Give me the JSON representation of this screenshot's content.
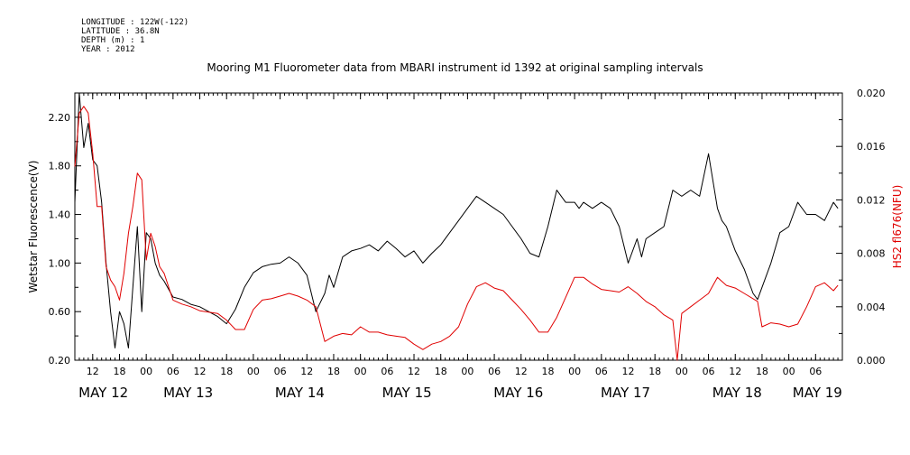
{
  "meta": {
    "longitude": "LONGITUDE : 122W(-122)",
    "latitude": "LATITUDE : 36.8N",
    "depth": "DEPTH (m) : 1",
    "year": "YEAR : 2012"
  },
  "colors": {
    "left_series": "#000000",
    "right_series": "#e00000",
    "right_axis_label": "#e00000"
  },
  "chart_data": {
    "type": "line",
    "title": "Mooring M1 Fluorometer data from MBARI instrument id 1392 at original sampling intervals",
    "ylabel_left": "Wetstar Fluorescence(V)",
    "ylabel_right": "HS2 fl676(NFU)",
    "ylim_left": [
      0.2,
      2.4
    ],
    "ylim_right": [
      0.0,
      0.02
    ],
    "yticks_left": [
      "0.20",
      "0.60",
      "1.00",
      "1.40",
      "1.80",
      "2.20"
    ],
    "yticks_right": [
      "0.000",
      "0.004",
      "0.008",
      "0.012",
      "0.016",
      "0.020"
    ],
    "xlim_hours": [
      0,
      172
    ],
    "hour_ticks": [
      {
        "h": 4,
        "label": "12"
      },
      {
        "h": 10,
        "label": "18"
      },
      {
        "h": 16,
        "label": "00"
      },
      {
        "h": 22,
        "label": "06"
      },
      {
        "h": 28,
        "label": "12"
      },
      {
        "h": 34,
        "label": "18"
      },
      {
        "h": 40,
        "label": "00"
      },
      {
        "h": 46,
        "label": "06"
      },
      {
        "h": 52,
        "label": "12"
      },
      {
        "h": 58,
        "label": "18"
      },
      {
        "h": 64,
        "label": "00"
      },
      {
        "h": 70,
        "label": "06"
      },
      {
        "h": 76,
        "label": "12"
      },
      {
        "h": 82,
        "label": "18"
      },
      {
        "h": 88,
        "label": "00"
      },
      {
        "h": 94,
        "label": "06"
      },
      {
        "h": 100,
        "label": "12"
      },
      {
        "h": 106,
        "label": "18"
      },
      {
        "h": 112,
        "label": "00"
      },
      {
        "h": 118,
        "label": "06"
      },
      {
        "h": 124,
        "label": "12"
      },
      {
        "h": 130,
        "label": "18"
      },
      {
        "h": 136,
        "label": "00"
      },
      {
        "h": 142,
        "label": "06"
      },
      {
        "h": 148,
        "label": "12"
      },
      {
        "h": 154,
        "label": "18"
      },
      {
        "h": 160,
        "label": "00"
      },
      {
        "h": 166,
        "label": "06"
      }
    ],
    "day_labels": [
      {
        "h": 6,
        "label": "MAY 12"
      },
      {
        "h": 25,
        "label": "MAY 13"
      },
      {
        "h": 50,
        "label": "MAY 14"
      },
      {
        "h": 74,
        "label": "MAY 15"
      },
      {
        "h": 99,
        "label": "MAY 16"
      },
      {
        "h": 123,
        "label": "MAY 17"
      },
      {
        "h": 148,
        "label": "MAY 18"
      },
      {
        "h": 166,
        "label": "MAY 19"
      }
    ],
    "series": [
      {
        "name": "Wetstar Fluorescence(V)",
        "axis": "left",
        "x": [
          0,
          1,
          2,
          3,
          4,
          5,
          6,
          7,
          8,
          9,
          10,
          11,
          12,
          13,
          14,
          15,
          16,
          17,
          18,
          19,
          20,
          22,
          24,
          26,
          28,
          30,
          32,
          34,
          36,
          38,
          40,
          42,
          44,
          46,
          48,
          50,
          52,
          54,
          56,
          57,
          58,
          60,
          62,
          64,
          66,
          68,
          70,
          72,
          74,
          76,
          78,
          80,
          82,
          84,
          86,
          88,
          90,
          92,
          94,
          96,
          98,
          100,
          102,
          104,
          106,
          108,
          110,
          112,
          113,
          114,
          116,
          118,
          120,
          122,
          124,
          126,
          127,
          128,
          130,
          132,
          134,
          136,
          138,
          140,
          142,
          144,
          145,
          146,
          148,
          150,
          152,
          153,
          154,
          156,
          158,
          160,
          162,
          164,
          166,
          168,
          170,
          171
        ],
        "y": [
          1.5,
          2.4,
          1.95,
          2.15,
          1.85,
          1.8,
          1.5,
          1.0,
          0.6,
          0.3,
          0.6,
          0.5,
          0.3,
          0.8,
          1.3,
          0.6,
          1.25,
          1.2,
          1.0,
          0.9,
          0.85,
          0.72,
          0.7,
          0.66,
          0.64,
          0.6,
          0.56,
          0.5,
          0.62,
          0.8,
          0.92,
          0.97,
          0.99,
          1.0,
          1.05,
          1.0,
          0.9,
          0.6,
          0.75,
          0.9,
          0.8,
          1.05,
          1.1,
          1.12,
          1.15,
          1.1,
          1.18,
          1.12,
          1.05,
          1.1,
          1.0,
          1.08,
          1.15,
          1.25,
          1.35,
          1.45,
          1.55,
          1.5,
          1.45,
          1.4,
          1.3,
          1.2,
          1.08,
          1.05,
          1.3,
          1.6,
          1.5,
          1.5,
          1.45,
          1.5,
          1.45,
          1.5,
          1.45,
          1.3,
          1.0,
          1.2,
          1.05,
          1.2,
          1.25,
          1.3,
          1.6,
          1.55,
          1.6,
          1.55,
          1.9,
          1.45,
          1.35,
          1.3,
          1.1,
          0.95,
          0.75,
          0.7,
          0.8,
          1.0,
          1.25,
          1.3,
          1.5,
          1.4,
          1.4,
          1.35,
          1.5,
          1.45
        ]
      },
      {
        "name": "HS2 fl676(NFU)",
        "axis": "right",
        "x": [
          0,
          1,
          2,
          3,
          4,
          5,
          6,
          7,
          8,
          9,
          10,
          11,
          12,
          13,
          14,
          15,
          16,
          17,
          18,
          19,
          20,
          22,
          24,
          26,
          28,
          30,
          32,
          34,
          36,
          38,
          40,
          42,
          44,
          46,
          48,
          50,
          52,
          54,
          56,
          58,
          60,
          62,
          64,
          66,
          68,
          70,
          72,
          74,
          76,
          78,
          80,
          82,
          84,
          86,
          88,
          90,
          92,
          94,
          96,
          98,
          100,
          102,
          104,
          106,
          108,
          110,
          112,
          114,
          116,
          118,
          120,
          122,
          124,
          126,
          128,
          130,
          132,
          134,
          135,
          136,
          138,
          140,
          142,
          144,
          146,
          148,
          150,
          152,
          153,
          154,
          156,
          158,
          160,
          162,
          164,
          166,
          168,
          170,
          171
        ],
        "y": [
          0.0145,
          0.0185,
          0.019,
          0.0185,
          0.0155,
          0.0115,
          0.0115,
          0.007,
          0.006,
          0.0055,
          0.0045,
          0.0065,
          0.0095,
          0.0115,
          0.014,
          0.0135,
          0.0075,
          0.0095,
          0.0085,
          0.007,
          0.0065,
          0.0045,
          0.0042,
          0.004,
          0.0037,
          0.0036,
          0.0035,
          0.003,
          0.0023,
          0.0023,
          0.0038,
          0.0045,
          0.0046,
          0.0048,
          0.005,
          0.0048,
          0.0045,
          0.004,
          0.0014,
          0.0018,
          0.002,
          0.0019,
          0.0025,
          0.0021,
          0.0021,
          0.0019,
          0.0018,
          0.0017,
          0.0012,
          0.0008,
          0.0012,
          0.0014,
          0.0018,
          0.0025,
          0.0042,
          0.0055,
          0.0058,
          0.0054,
          0.0052,
          0.0045,
          0.0038,
          0.003,
          0.0021,
          0.0021,
          0.0032,
          0.0047,
          0.0062,
          0.0062,
          0.0057,
          0.0053,
          0.0052,
          0.0051,
          0.0055,
          0.005,
          0.0044,
          0.004,
          0.0034,
          0.003,
          0.0,
          0.0035,
          0.004,
          0.0045,
          0.005,
          0.0062,
          0.0056,
          0.0054,
          0.005,
          0.0046,
          0.0044,
          0.0025,
          0.0028,
          0.0027,
          0.0025,
          0.0027,
          0.004,
          0.0055,
          0.0058,
          0.0052,
          0.0056
        ]
      }
    ]
  }
}
